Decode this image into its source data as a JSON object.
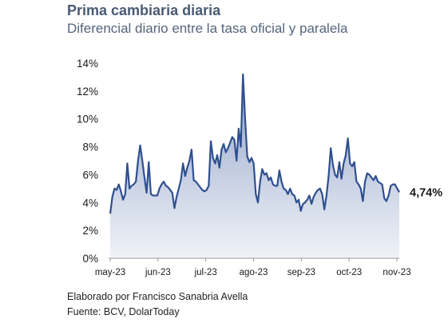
{
  "title": "Prima cambiaria diaria",
  "subtitle": "Diferencial diario entre la tasa oficial y paralela",
  "footer": {
    "author": "Elaborado por Francisco Sanabria Avella",
    "source": "Fuente: BCV, DolarToday"
  },
  "colors": {
    "line": "#2f4f8f",
    "area_top": "#8a9dc4",
    "area_bottom": "#eef1f7",
    "axis_text": "#1a1a1a",
    "axis_line": "#9a9a9a"
  },
  "chart_data": {
    "type": "area",
    "title": "Prima cambiaria diaria",
    "subtitle": "Diferencial diario entre la tasa oficial y paralela",
    "xlabel": "",
    "ylabel": "",
    "ylim": [
      0,
      14
    ],
    "yticks": [
      0,
      2,
      4,
      6,
      8,
      10,
      12,
      14
    ],
    "ytick_labels": [
      "0%",
      "2%",
      "4%",
      "6%",
      "8%",
      "10%",
      "12%",
      "14%"
    ],
    "xtick_labels": [
      "may-23",
      "jun-23",
      "jul-23",
      "ago-23",
      "sep-23",
      "oct-23",
      "nov-23"
    ],
    "grid": false,
    "legend": "none",
    "last_value_label": "4,74%",
    "series": [
      {
        "values": [
          3.2,
          4.4,
          5.0,
          4.9,
          5.3,
          4.8,
          4.2,
          4.6,
          6.8,
          5.0,
          5.2,
          5.3,
          5.5,
          7.0,
          8.1,
          7.0,
          5.8,
          4.7,
          6.9,
          4.6,
          4.5,
          4.5,
          4.5,
          5.0,
          5.3,
          5.5,
          5.2,
          5.1,
          4.9,
          4.7,
          3.6,
          4.4,
          5.0,
          5.6,
          6.8,
          5.9,
          6.5,
          7.0,
          7.8,
          5.6,
          5.5,
          5.3,
          5.1,
          4.9,
          4.8,
          4.9,
          5.2,
          8.4,
          7.2,
          6.8,
          7.4,
          6.5,
          7.8,
          8.2,
          7.6,
          7.9,
          8.3,
          8.7,
          8.5,
          7.0,
          9.3,
          8.0,
          13.2,
          10.0,
          7.3,
          6.9,
          7.2,
          6.8,
          4.6,
          4.0,
          5.5,
          6.4,
          6.0,
          6.1,
          5.6,
          5.8,
          5.3,
          5.2,
          5.2,
          6.3,
          5.5,
          5.0,
          4.9,
          4.6,
          5.0,
          4.6,
          4.5,
          4.0,
          4.2,
          3.4,
          3.9,
          4.0,
          4.2,
          4.5,
          3.9,
          4.4,
          4.7,
          4.9,
          5.0,
          4.6,
          3.5,
          4.5,
          5.9,
          7.9,
          6.7,
          6.0,
          5.8,
          6.9,
          5.7,
          6.8,
          7.4,
          8.6,
          6.8,
          6.6,
          6.9,
          5.5,
          5.3,
          5.0,
          4.1,
          5.5,
          6.1,
          6.0,
          5.8,
          5.6,
          5.9,
          5.5,
          5.4,
          5.3,
          4.3,
          4.1,
          4.5,
          5.2,
          5.3,
          5.3,
          5.0,
          4.74
        ]
      }
    ]
  }
}
